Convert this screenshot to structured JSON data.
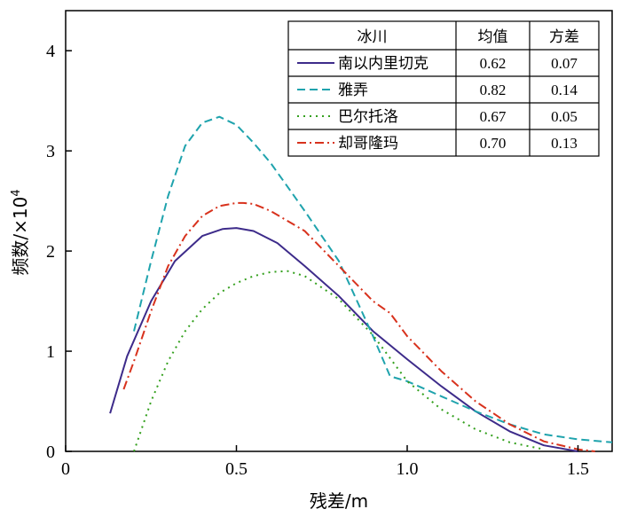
{
  "chart_data": {
    "type": "line",
    "xlabel": "残差/m",
    "ylabel": "频数/×10",
    "ylabel_exponent": "4",
    "xlim": [
      0,
      1.6
    ],
    "ylim": [
      0,
      4.4
    ],
    "xticks": [
      0,
      0.5,
      1.0,
      1.5
    ],
    "xtick_labels": [
      "0",
      "0.5",
      "1.0",
      "1.5"
    ],
    "yticks": [
      0,
      1,
      2,
      3,
      4
    ],
    "ytick_labels": [
      "0",
      "1",
      "2",
      "3",
      "4"
    ],
    "grid": false,
    "legend_placement": "top-right",
    "legend_headers": [
      "冰川",
      "均值",
      "方差"
    ],
    "series": [
      {
        "name": "南以内里切克",
        "mean": "0.62",
        "variance": "0.07",
        "color": "#3d2b8a",
        "dash": "solid",
        "x": [
          0.13,
          0.18,
          0.25,
          0.32,
          0.4,
          0.46,
          0.5,
          0.55,
          0.62,
          0.7,
          0.8,
          0.9,
          1.0,
          1.1,
          1.2,
          1.3,
          1.4,
          1.5
        ],
        "y": [
          0.38,
          0.95,
          1.5,
          1.9,
          2.15,
          2.22,
          2.23,
          2.2,
          2.08,
          1.85,
          1.55,
          1.2,
          0.92,
          0.65,
          0.4,
          0.2,
          0.06,
          0.0
        ]
      },
      {
        "name": "雅弄",
        "mean": "0.82",
        "variance": "0.14",
        "color": "#1fa3ad",
        "dash": "dashed",
        "x": [
          0.2,
          0.25,
          0.3,
          0.35,
          0.4,
          0.45,
          0.5,
          0.55,
          0.6,
          0.65,
          0.7,
          0.8,
          0.9,
          0.95,
          1.0,
          1.1,
          1.2,
          1.3,
          1.4,
          1.5,
          1.6
        ],
        "y": [
          1.2,
          1.9,
          2.55,
          3.05,
          3.28,
          3.34,
          3.26,
          3.08,
          2.88,
          2.64,
          2.4,
          1.9,
          1.15,
          0.75,
          0.7,
          0.55,
          0.4,
          0.27,
          0.17,
          0.12,
          0.09
        ]
      },
      {
        "name": "巴尔托洛",
        "mean": "0.67",
        "variance": "0.05",
        "color": "#34a01e",
        "dash": "dotted",
        "x": [
          0.2,
          0.25,
          0.3,
          0.35,
          0.4,
          0.45,
          0.5,
          0.55,
          0.6,
          0.65,
          0.7,
          0.8,
          0.9,
          1.0,
          1.1,
          1.2,
          1.3,
          1.4
        ],
        "y": [
          0.0,
          0.5,
          0.9,
          1.2,
          1.42,
          1.58,
          1.68,
          1.75,
          1.79,
          1.8,
          1.75,
          1.52,
          1.16,
          0.7,
          0.42,
          0.22,
          0.09,
          0.02
        ]
      },
      {
        "name": "却哥隆玛",
        "mean": "0.70",
        "variance": "0.13",
        "color": "#d8321d",
        "dash": "dashdot",
        "x": [
          0.17,
          0.2,
          0.25,
          0.3,
          0.35,
          0.4,
          0.45,
          0.5,
          0.52,
          0.55,
          0.6,
          0.7,
          0.8,
          0.9,
          0.95,
          1.0,
          1.1,
          1.2,
          1.3,
          1.4,
          1.5,
          1.55
        ],
        "y": [
          0.62,
          0.9,
          1.4,
          1.85,
          2.15,
          2.35,
          2.45,
          2.48,
          2.48,
          2.47,
          2.4,
          2.2,
          1.85,
          1.5,
          1.38,
          1.15,
          0.8,
          0.5,
          0.27,
          0.1,
          0.02,
          0.0
        ]
      }
    ]
  }
}
